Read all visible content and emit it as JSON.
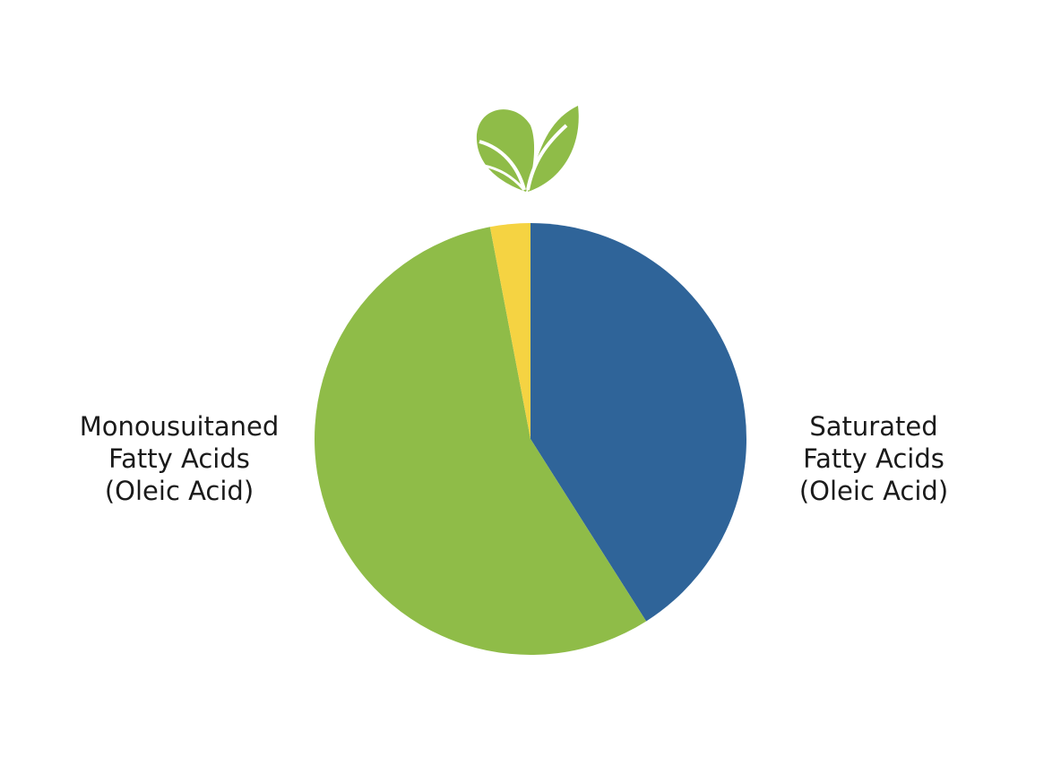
{
  "chart_data": {
    "type": "pie",
    "categories": [
      "Saturated\nFatty Acids\n(Oleic Acid)",
      "Monousuitaned\nFatty Acids\n(Oleic Acid)",
      null
    ],
    "values": [
      41,
      56,
      3
    ],
    "colors": [
      "#2f6499",
      "#8fbc48",
      "#f5d342"
    ]
  }
}
